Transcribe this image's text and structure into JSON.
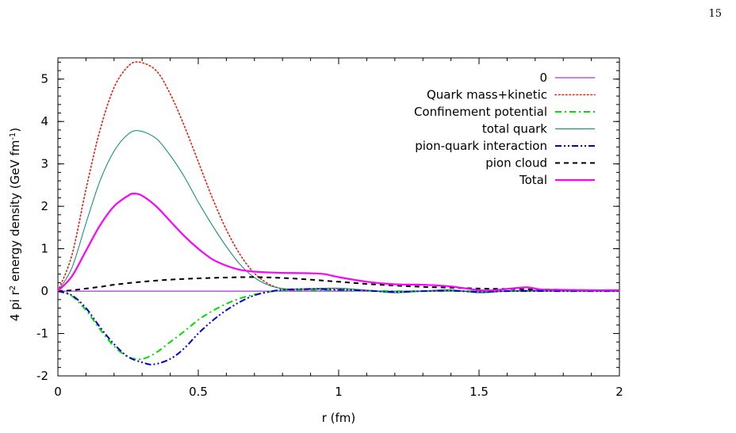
{
  "page": {
    "number": "15"
  },
  "chart_data": {
    "type": "line",
    "title": "",
    "xlabel": "r (fm)",
    "ylabel_parts": [
      "4 pi r",
      "2",
      " energy density (GeV fm",
      "-1",
      ")"
    ],
    "xlim": [
      0,
      2
    ],
    "ylim": [
      -2,
      5.5
    ],
    "xticks": [
      0,
      0.5,
      1,
      1.5,
      2
    ],
    "xtick_labels": [
      "0",
      "0.5",
      "1",
      "1.5",
      "2"
    ],
    "yticks": [
      -2,
      -1,
      0,
      1,
      2,
      3,
      4,
      5
    ],
    "ytick_labels": [
      "-2",
      "-1",
      "0",
      "1",
      "2",
      "3",
      "4",
      "5"
    ],
    "grid": false,
    "legend_position": "top-right",
    "series": [
      {
        "name": "0",
        "color": "#9400d3",
        "style": "solid-thin",
        "points": [
          [
            0,
            0
          ],
          [
            2,
            0
          ]
        ]
      },
      {
        "name": "Quark mass+kinetic",
        "color": "#e51e10",
        "style": "dotted",
        "points": [
          [
            0,
            0
          ],
          [
            0.05,
            0.85
          ],
          [
            0.1,
            2.4
          ],
          [
            0.15,
            3.8
          ],
          [
            0.2,
            4.8
          ],
          [
            0.25,
            5.3
          ],
          [
            0.29,
            5.4
          ],
          [
            0.35,
            5.2
          ],
          [
            0.4,
            4.65
          ],
          [
            0.45,
            3.9
          ],
          [
            0.5,
            3.05
          ],
          [
            0.55,
            2.2
          ],
          [
            0.6,
            1.45
          ],
          [
            0.65,
            0.85
          ],
          [
            0.7,
            0.42
          ],
          [
            0.75,
            0.17
          ],
          [
            0.8,
            0.05
          ],
          [
            0.85,
            0.02
          ],
          [
            0.9,
            0.04
          ],
          [
            1.0,
            0.06
          ],
          [
            1.1,
            0.02
          ],
          [
            1.2,
            -0.03
          ],
          [
            1.3,
            0.0
          ],
          [
            1.4,
            0.02
          ],
          [
            1.5,
            -0.03
          ],
          [
            1.6,
            0.0
          ],
          [
            1.7,
            0.02
          ],
          [
            1.8,
            0.01
          ],
          [
            2.0,
            0.0
          ]
        ]
      },
      {
        "name": "Confinement potential",
        "color": "#00e000",
        "style": "dash-dot",
        "points": [
          [
            0,
            0
          ],
          [
            0.05,
            -0.12
          ],
          [
            0.1,
            -0.45
          ],
          [
            0.15,
            -0.9
          ],
          [
            0.2,
            -1.3
          ],
          [
            0.25,
            -1.55
          ],
          [
            0.3,
            -1.6
          ],
          [
            0.35,
            -1.45
          ],
          [
            0.4,
            -1.2
          ],
          [
            0.45,
            -0.95
          ],
          [
            0.5,
            -0.68
          ],
          [
            0.55,
            -0.47
          ],
          [
            0.6,
            -0.3
          ],
          [
            0.65,
            -0.17
          ],
          [
            0.7,
            -0.08
          ],
          [
            0.75,
            -0.02
          ],
          [
            0.8,
            0.02
          ],
          [
            0.9,
            0.03
          ],
          [
            1.0,
            0.02
          ],
          [
            1.2,
            0.0
          ],
          [
            1.5,
            0.0
          ],
          [
            2.0,
            0.0
          ]
        ]
      },
      {
        "name": "total quark",
        "color": "#008b6b",
        "style": "solid-thin",
        "points": [
          [
            0,
            0
          ],
          [
            0.05,
            0.55
          ],
          [
            0.1,
            1.6
          ],
          [
            0.15,
            2.6
          ],
          [
            0.2,
            3.3
          ],
          [
            0.25,
            3.7
          ],
          [
            0.29,
            3.78
          ],
          [
            0.35,
            3.6
          ],
          [
            0.4,
            3.2
          ],
          [
            0.45,
            2.7
          ],
          [
            0.5,
            2.1
          ],
          [
            0.55,
            1.55
          ],
          [
            0.6,
            1.05
          ],
          [
            0.65,
            0.62
          ],
          [
            0.7,
            0.32
          ],
          [
            0.75,
            0.14
          ],
          [
            0.8,
            0.06
          ],
          [
            0.85,
            0.05
          ],
          [
            0.9,
            0.06
          ],
          [
            1.0,
            0.07
          ],
          [
            1.1,
            0.02
          ],
          [
            1.2,
            -0.04
          ],
          [
            1.3,
            0.0
          ],
          [
            1.4,
            0.03
          ],
          [
            1.5,
            -0.04
          ],
          [
            1.6,
            0.0
          ],
          [
            1.7,
            0.02
          ],
          [
            1.8,
            0.01
          ],
          [
            2.0,
            0.0
          ]
        ]
      },
      {
        "name": "pion-quark interaction",
        "color": "#0000cd",
        "style": "dash-dot-dot",
        "points": [
          [
            0,
            0
          ],
          [
            0.05,
            -0.1
          ],
          [
            0.1,
            -0.4
          ],
          [
            0.15,
            -0.85
          ],
          [
            0.2,
            -1.25
          ],
          [
            0.25,
            -1.55
          ],
          [
            0.3,
            -1.68
          ],
          [
            0.34,
            -1.73
          ],
          [
            0.4,
            -1.6
          ],
          [
            0.45,
            -1.35
          ],
          [
            0.5,
            -1.0
          ],
          [
            0.55,
            -0.7
          ],
          [
            0.6,
            -0.45
          ],
          [
            0.65,
            -0.25
          ],
          [
            0.7,
            -0.1
          ],
          [
            0.75,
            -0.02
          ],
          [
            0.8,
            0.03
          ],
          [
            0.9,
            0.05
          ],
          [
            1.0,
            0.03
          ],
          [
            1.1,
            0.01
          ],
          [
            1.2,
            -0.02
          ],
          [
            1.3,
            0.0
          ],
          [
            1.4,
            0.01
          ],
          [
            1.5,
            -0.02
          ],
          [
            1.6,
            0.0
          ],
          [
            1.8,
            0.0
          ],
          [
            2.0,
            0.0
          ]
        ]
      },
      {
        "name": "pion cloud",
        "color": "#000000",
        "style": "dashed",
        "points": [
          [
            0,
            0
          ],
          [
            0.05,
            0.02
          ],
          [
            0.1,
            0.06
          ],
          [
            0.15,
            0.1
          ],
          [
            0.2,
            0.15
          ],
          [
            0.3,
            0.22
          ],
          [
            0.4,
            0.27
          ],
          [
            0.5,
            0.3
          ],
          [
            0.6,
            0.32
          ],
          [
            0.7,
            0.33
          ],
          [
            0.8,
            0.31
          ],
          [
            0.9,
            0.27
          ],
          [
            1.0,
            0.22
          ],
          [
            1.1,
            0.17
          ],
          [
            1.2,
            0.13
          ],
          [
            1.3,
            0.1
          ],
          [
            1.4,
            0.08
          ],
          [
            1.5,
            0.06
          ],
          [
            1.6,
            0.05
          ],
          [
            1.7,
            0.04
          ],
          [
            1.8,
            0.03
          ],
          [
            1.9,
            0.02
          ],
          [
            2.0,
            0.02
          ]
        ]
      },
      {
        "name": "Total",
        "color": "#ff00ff",
        "style": "solid-thick",
        "points": [
          [
            0,
            0
          ],
          [
            0.05,
            0.35
          ],
          [
            0.1,
            0.95
          ],
          [
            0.15,
            1.55
          ],
          [
            0.2,
            2.0
          ],
          [
            0.25,
            2.25
          ],
          [
            0.27,
            2.3
          ],
          [
            0.3,
            2.25
          ],
          [
            0.35,
            2.0
          ],
          [
            0.4,
            1.65
          ],
          [
            0.45,
            1.3
          ],
          [
            0.5,
            1.0
          ],
          [
            0.55,
            0.75
          ],
          [
            0.6,
            0.6
          ],
          [
            0.65,
            0.5
          ],
          [
            0.7,
            0.46
          ],
          [
            0.75,
            0.44
          ],
          [
            0.8,
            0.43
          ],
          [
            0.9,
            0.42
          ],
          [
            0.95,
            0.4
          ],
          [
            1.0,
            0.33
          ],
          [
            1.1,
            0.22
          ],
          [
            1.2,
            0.16
          ],
          [
            1.3,
            0.15
          ],
          [
            1.4,
            0.11
          ],
          [
            1.5,
            0.02
          ],
          [
            1.55,
            0.02
          ],
          [
            1.6,
            0.05
          ],
          [
            1.67,
            0.09
          ],
          [
            1.72,
            0.04
          ],
          [
            1.8,
            0.03
          ],
          [
            1.9,
            0.02
          ],
          [
            2.0,
            0.02
          ]
        ]
      }
    ]
  }
}
